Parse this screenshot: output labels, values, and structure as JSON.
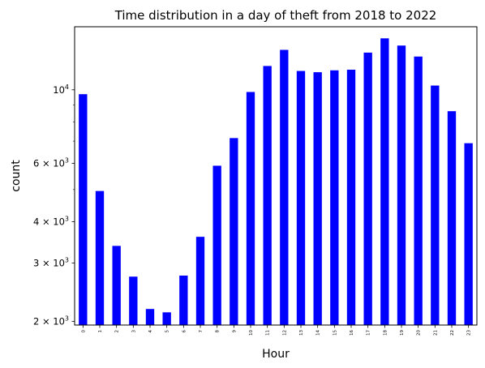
{
  "chart_data": {
    "type": "bar",
    "title": "Time distribution in a day of theft from 2018 to 2022",
    "xlabel": "Hour",
    "ylabel": "count",
    "yscale": "log",
    "ylim": [
      1950,
      15500
    ],
    "categories": [
      "0",
      "1",
      "2",
      "3",
      "4",
      "5",
      "6",
      "7",
      "8",
      "9",
      "10",
      "11",
      "12",
      "13",
      "14",
      "15",
      "16",
      "17",
      "18",
      "19",
      "20",
      "21",
      "22",
      "23"
    ],
    "values": [
      9700,
      4950,
      3380,
      2730,
      2180,
      2130,
      2750,
      3600,
      5900,
      7150,
      9850,
      11800,
      13200,
      11400,
      11300,
      11450,
      11500,
      12950,
      14300,
      13600,
      12600,
      10300,
      8620,
      6900
    ],
    "y_major_ticks": [
      {
        "value": 2000,
        "mantissa": "2",
        "base": "10",
        "exp": "3"
      },
      {
        "value": 3000,
        "mantissa": "3",
        "base": "10",
        "exp": "3"
      },
      {
        "value": 4000,
        "mantissa": "4",
        "base": "10",
        "exp": "3"
      },
      {
        "value": 6000,
        "mantissa": "6",
        "base": "10",
        "exp": "3"
      },
      {
        "value": 10000,
        "mantissa": "",
        "base": "10",
        "exp": "4"
      }
    ],
    "y_minor_ticks": [
      5000,
      7000,
      8000,
      9000
    ],
    "legend": "none",
    "grid": false,
    "colors": {
      "bar": "#0000ff",
      "axes": "#000000",
      "background": "#ffffff"
    }
  }
}
